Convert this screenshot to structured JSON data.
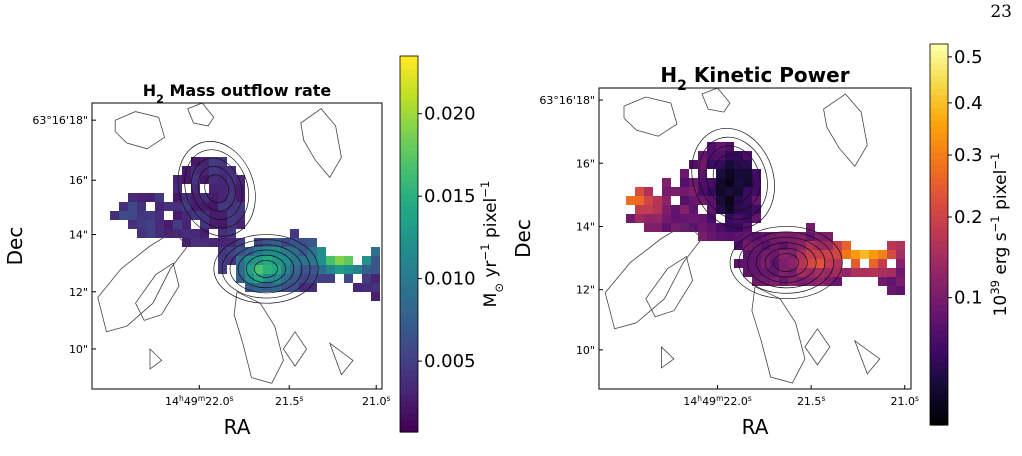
{
  "page_number": "23",
  "chart_data": [
    {
      "type": "heatmap",
      "title": "H2 Mass outflow rate",
      "title_parts": {
        "pre": "H",
        "sub": "2",
        "post": " Mass outflow rate"
      },
      "xlabel": "RA",
      "ylabel": "Dec",
      "x_ticks": [
        "14h49m22.0s",
        "21.5s",
        "21.0s"
      ],
      "x_tick_parts": [
        [
          {
            "t": "14"
          },
          {
            "t": "h",
            "sup": true
          },
          {
            "t": "49"
          },
          {
            "t": "m",
            "sup": true
          },
          {
            "t": "22.0"
          },
          {
            "t": "s",
            "sup": true
          }
        ],
        [
          {
            "t": "21.5"
          },
          {
            "t": "s",
            "sup": true
          }
        ],
        [
          {
            "t": "21.0"
          },
          {
            "t": "s",
            "sup": true
          }
        ]
      ],
      "y_ticks": [
        "63°16'18\"",
        "16\"",
        "14\"",
        "12\"",
        "10\""
      ],
      "colormap": "viridis",
      "colorbar": {
        "label": "M⊙ yr−1 pixel−1",
        "label_parts": [
          {
            "t": "M"
          },
          {
            "t": "⊙",
            "sub": true
          },
          {
            "t": " yr"
          },
          {
            "t": "−1",
            "sup": true
          },
          {
            "t": " pixel"
          },
          {
            "t": "−1",
            "sup": true
          }
        ],
        "ticks": [
          0.005,
          0.01,
          0.015,
          0.02
        ],
        "tick_labels": [
          "0.005",
          "0.010",
          "0.015",
          "0.020"
        ],
        "range": [
          0.0007,
          0.0235
        ],
        "scale": "linear"
      }
    },
    {
      "type": "heatmap",
      "title": "H2 Kinetic Power",
      "title_parts": {
        "pre": "H",
        "sub": "2",
        "post": " Kinetic Power"
      },
      "xlabel": "RA",
      "ylabel": "Dec",
      "x_ticks": [
        "14h49m22.0s",
        "21.5s",
        "21.0s"
      ],
      "x_tick_parts": [
        [
          {
            "t": "14"
          },
          {
            "t": "h",
            "sup": true
          },
          {
            "t": "49"
          },
          {
            "t": "m",
            "sup": true
          },
          {
            "t": "22.0"
          },
          {
            "t": "s",
            "sup": true
          }
        ],
        [
          {
            "t": "21.5"
          },
          {
            "t": "s",
            "sup": true
          }
        ],
        [
          {
            "t": "21.0"
          },
          {
            "t": "s",
            "sup": true
          }
        ]
      ],
      "y_ticks": [
        "63°16'18\"",
        "16\"",
        "14\"",
        "12\"",
        "10\""
      ],
      "colormap": "inferno",
      "colorbar": {
        "label": "1039 erg s−1 pixel−1",
        "label_parts": [
          {
            "t": "10"
          },
          {
            "t": "39",
            "sup": true
          },
          {
            "t": " erg s"
          },
          {
            "t": "−1",
            "sup": true
          },
          {
            "t": " pixel"
          },
          {
            "t": "−1",
            "sup": true
          }
        ],
        "ticks": [
          0.1,
          0.2,
          0.3,
          0.4,
          0.5
        ],
        "tick_labels": [
          "0.1",
          "0.2",
          "0.3",
          "0.4",
          "0.5"
        ],
        "range": [
          0.012,
          0.53
        ],
        "scale": "sqrt"
      }
    }
  ],
  "colors": {
    "viridis": [
      "#440154",
      "#482475",
      "#414487",
      "#355f8d",
      "#2a788e",
      "#21918c",
      "#22a884",
      "#44bf70",
      "#7ad151",
      "#bddf26",
      "#fde725"
    ],
    "inferno": [
      "#000004",
      "#160b39",
      "#420a68",
      "#6a176e",
      "#932667",
      "#bc3754",
      "#dd513a",
      "#f37819",
      "#fca50a",
      "#f6d746",
      "#fcffa4"
    ]
  }
}
